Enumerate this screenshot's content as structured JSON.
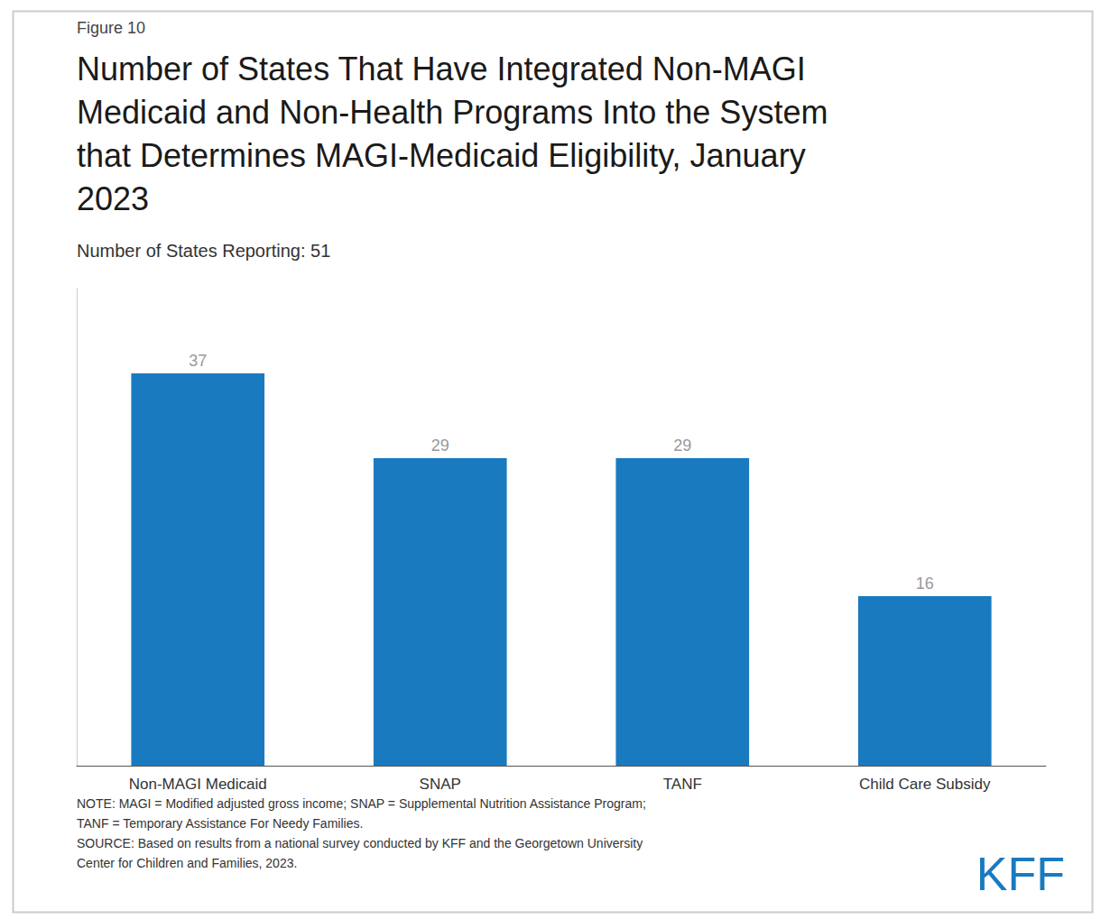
{
  "chart_data": {
    "type": "bar",
    "title": "Number of States That Have Integrated Non-MAGI\nMedicaid and Non-Health Programs Into the System\nthat Determines MAGI-Medicaid Eligibility, January\n2023",
    "subtitle": "Number of States Reporting: 51",
    "annotations": [
      "Figure 10",
      "NOTE: MAGI = Modified adjusted gross income; SNAP = Supplemental Nutrition Assistance Program;\nTANF = Temporary Assistance For Needy Families.\nSOURCE: Based on results from a national survey conducted by KFF and the Georgetown University\nCenter for Children and Families, 2023.",
      "KFF"
    ],
    "categories": [
      "Non-MAGI Medicaid",
      "SNAP",
      "TANF",
      "Child Care Subsidy"
    ],
    "values": [
      37,
      29,
      29,
      16
    ],
    "color": "#1a7abf",
    "ylim": [
      0,
      45
    ],
    "grid": false,
    "data_labels": true,
    "tick_labels": "x"
  }
}
